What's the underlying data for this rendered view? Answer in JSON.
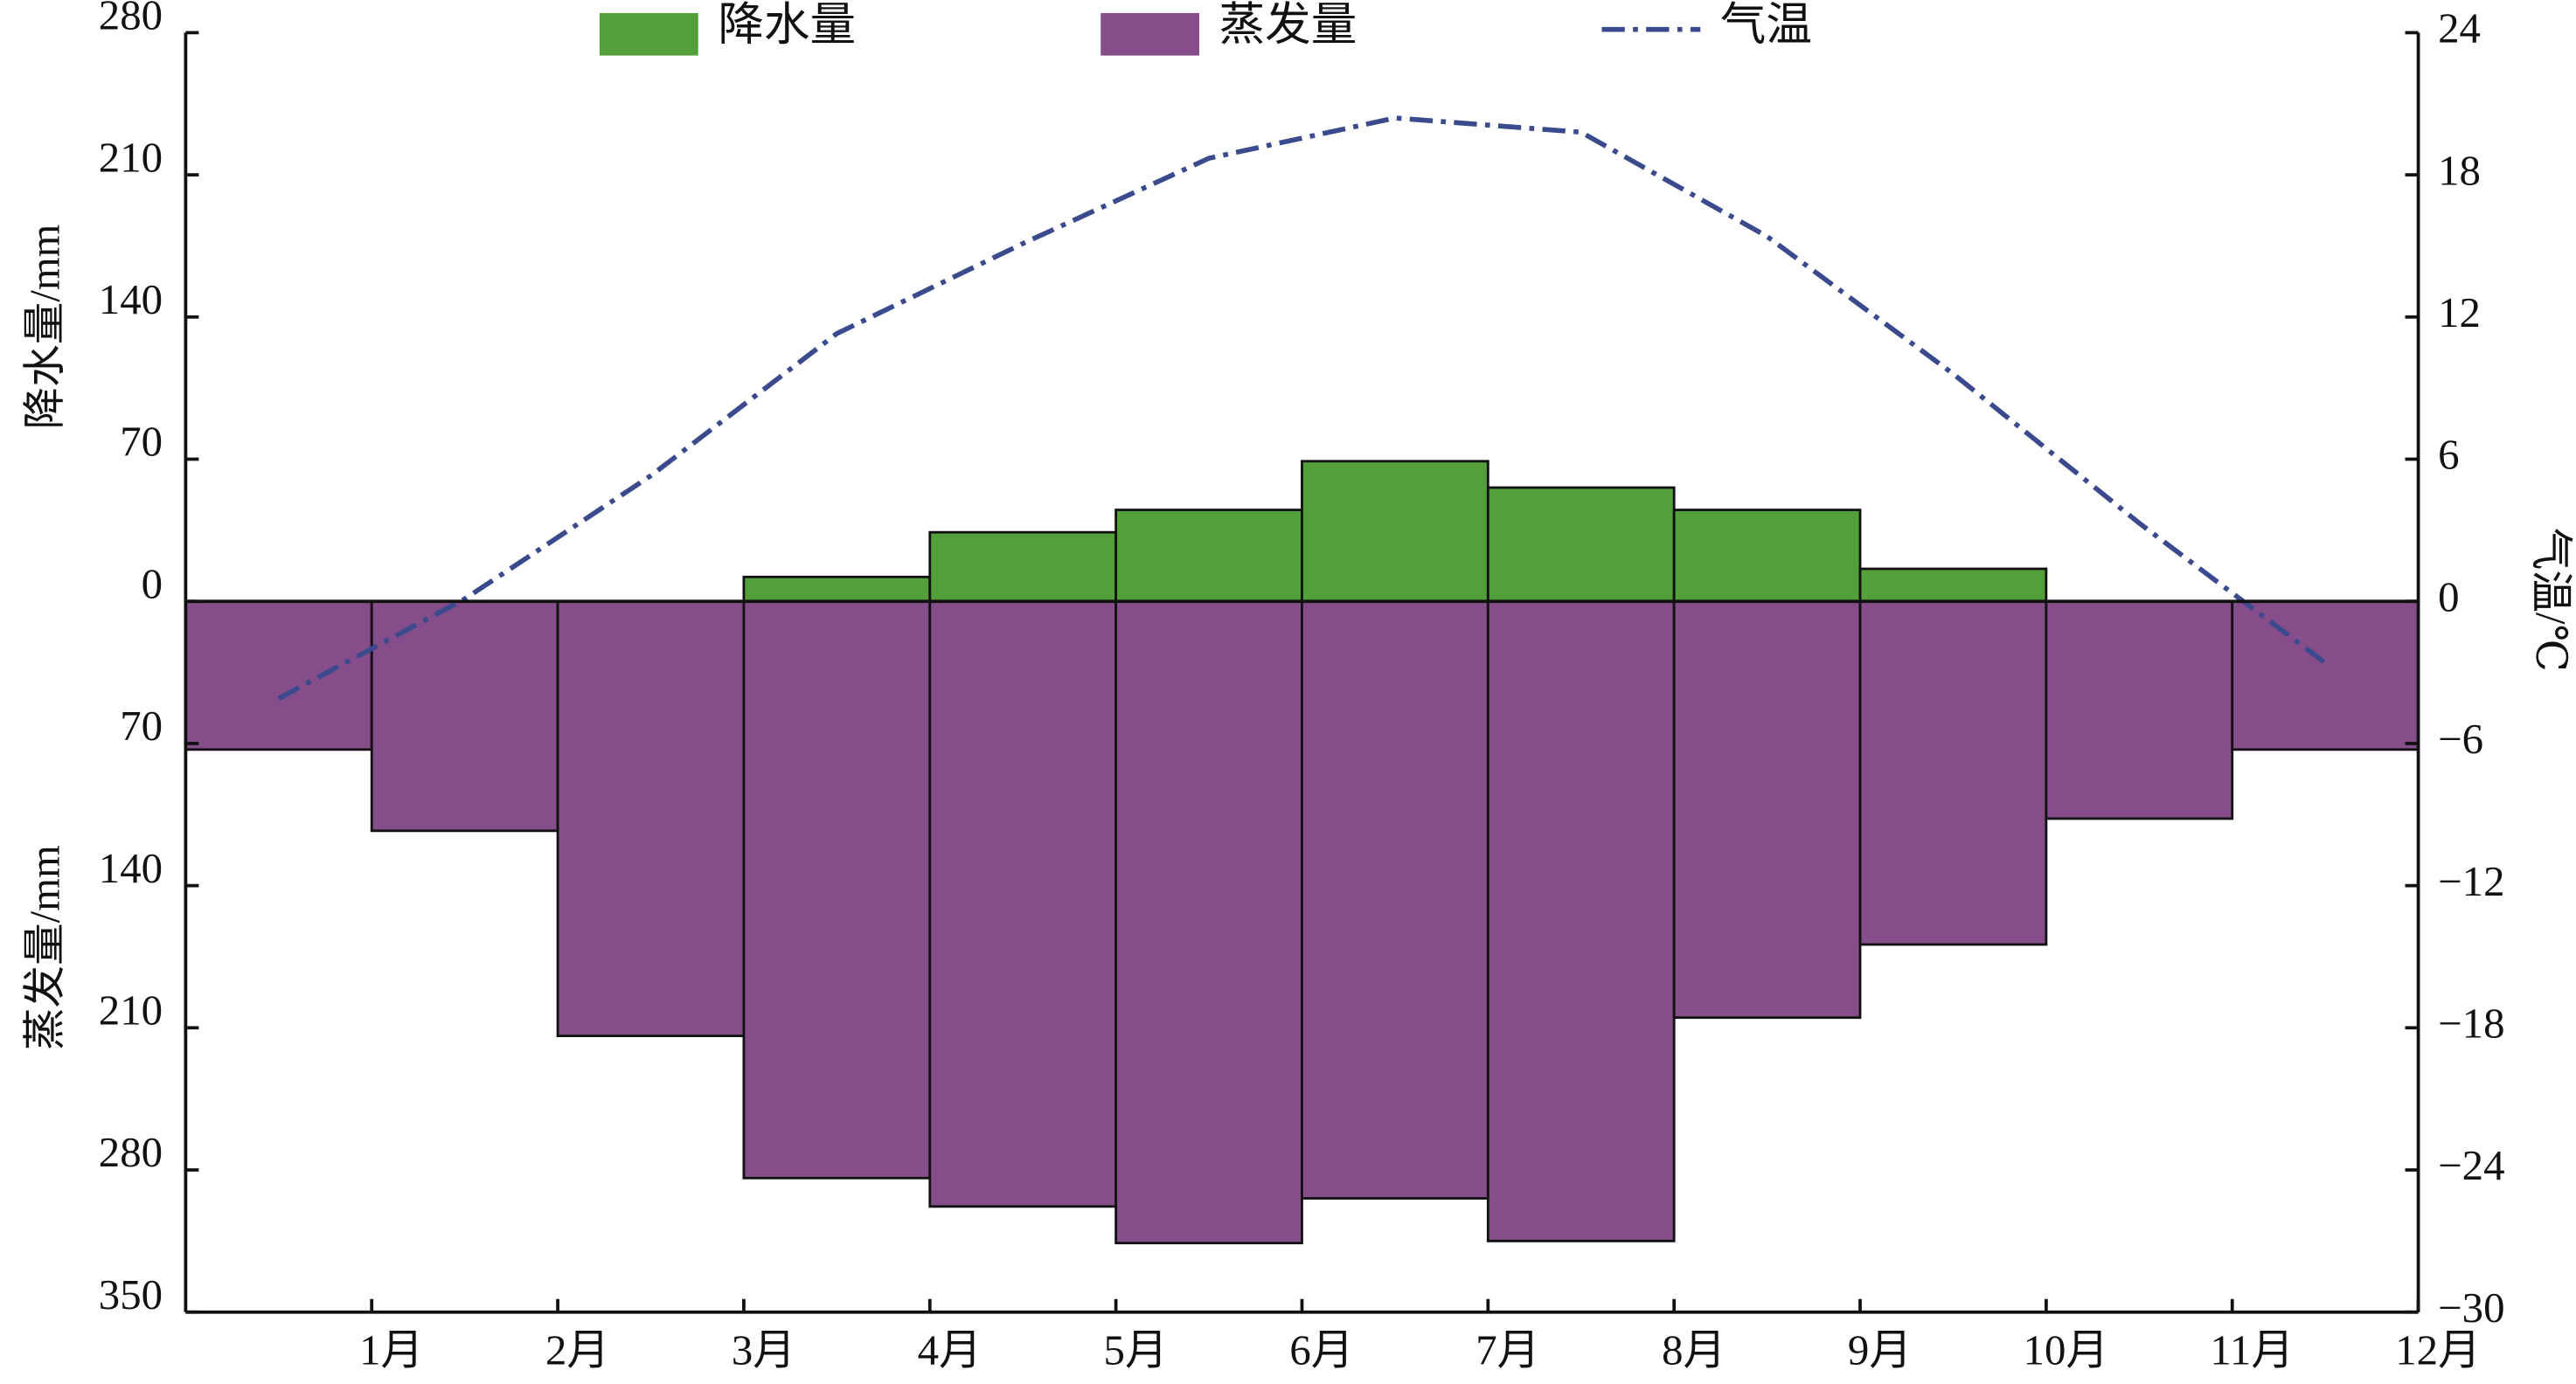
{
  "chart_data": {
    "type": "bar",
    "categories": [
      "1月",
      "2月",
      "3月",
      "4月",
      "5月",
      "6月",
      "7月",
      "8月",
      "9月",
      "10月",
      "11月",
      "12月"
    ],
    "y_label_top": "降水量/mm",
    "y_label_bottom": "蒸发量/mm",
    "y2_label": "气温/℃",
    "series": [
      {
        "name": "降水量",
        "type": "bar",
        "color": "#53a03a",
        "values": [
          0,
          0,
          0,
          12,
          34,
          45,
          69,
          56,
          45,
          16,
          0,
          0
        ]
      },
      {
        "name": "蒸发量",
        "type": "bar",
        "color": "#854e8b",
        "values": [
          -73,
          -113,
          -214,
          -284,
          -298,
          -316,
          -294,
          -315,
          -205,
          -169,
          -107,
          -73
        ]
      },
      {
        "name": "气温",
        "type": "line",
        "axis": "y2",
        "color": "#3b4a8c",
        "values": [
          -4.1,
          0.1,
          5.3,
          11.3,
          15.1,
          18.7,
          20.4,
          19.8,
          15.4,
          9.6,
          3.3,
          -2.6
        ]
      }
    ],
    "ylim": [
      -350,
      280
    ],
    "yticks": [
      280,
      210,
      140,
      70,
      0,
      {
        "value": -70,
        "label": "70"
      },
      {
        "value": -140,
        "label": "140"
      },
      {
        "value": -210,
        "label": "210"
      },
      {
        "value": -280,
        "label": "280"
      },
      {
        "value": -350,
        "label": "350"
      }
    ],
    "y2lim": [
      -30,
      24
    ],
    "y2ticks": [
      24,
      18,
      12,
      6,
      0,
      {
        "value": -6,
        "label": "−6"
      },
      {
        "value": -12,
        "label": "−12"
      },
      {
        "value": -18,
        "label": "−18"
      },
      {
        "value": -24,
        "label": "−24"
      },
      {
        "value": -30,
        "label": "−30"
      }
    ],
    "legend": "top"
  }
}
